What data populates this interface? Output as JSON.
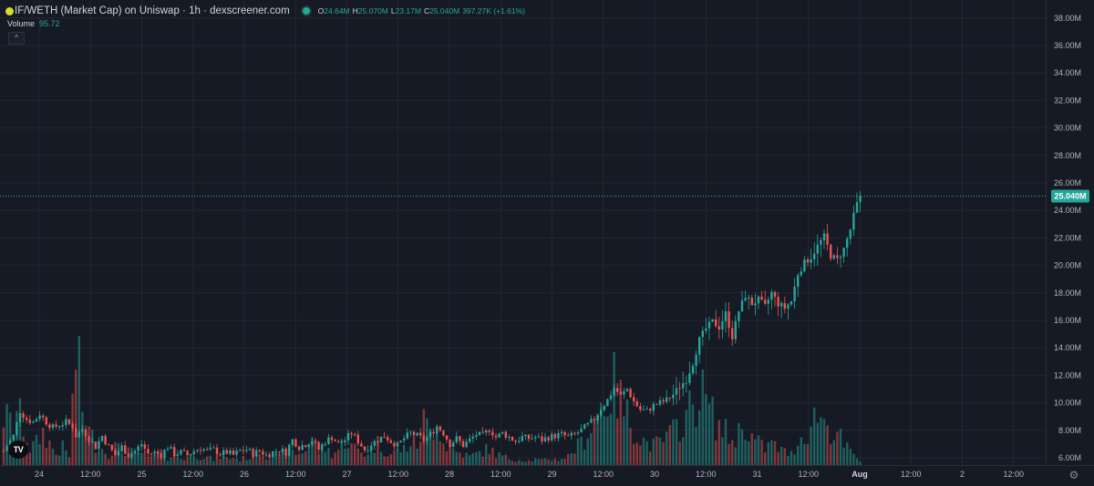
{
  "legend": {
    "title": "IF/WETH (Market Cap) on Uniswap · 1h · dexscreener.com",
    "o_label": "O",
    "o_value": "24.64M",
    "h_label": "H",
    "h_value": "25.070M",
    "l_label": "L",
    "l_value": "23.17M",
    "c_label": "C",
    "c_value": "25.040M",
    "change": "397.27K (+1.61%)"
  },
  "volume": {
    "label": "Volume",
    "value": "95.72"
  },
  "icons": {
    "collapse": "chevron-up-icon",
    "settings": "gear-icon",
    "logo": "tradingview-logo"
  },
  "logo_text": "TV",
  "settings_glyph": "⚙",
  "collapse_glyph": "^",
  "colors": {
    "background": "#161a25",
    "up": "#26a69a",
    "down": "#ef5350",
    "grid": "#232733",
    "text": "#b2b5be"
  },
  "chart_data": {
    "type": "candlestick",
    "price_axis": {
      "ticks": [
        "6.00M",
        "8.00M",
        "10.00M",
        "12.00M",
        "14.00M",
        "16.00M",
        "18.00M",
        "20.00M",
        "22.00M",
        "24.00M",
        "26.00M",
        "28.00M",
        "30.00M",
        "32.00M",
        "34.00M",
        "36.00M",
        "38.00M"
      ],
      "ylim": [
        5.6,
        38.8
      ]
    },
    "time_axis": {
      "ticks": [
        "24",
        "12:00",
        "25",
        "12:00",
        "26",
        "12:00",
        "27",
        "12:00",
        "28",
        "12:00",
        "29",
        "12:00",
        "30",
        "12:00",
        "31",
        "12:00",
        "Aug",
        "12:00",
        "2",
        "12:00"
      ]
    },
    "last_price_label": "25.040M",
    "last_price": 25.04,
    "price_path": [
      [
        0,
        6.5
      ],
      [
        3,
        7.6
      ],
      [
        5,
        9.4
      ],
      [
        7,
        8.8
      ],
      [
        9,
        8.6
      ],
      [
        11,
        9.2
      ],
      [
        13,
        8.6
      ],
      [
        15,
        8.2
      ],
      [
        17,
        8.4
      ],
      [
        19,
        8.6
      ],
      [
        21,
        8.3
      ],
      [
        22,
        7.6
      ],
      [
        24,
        8.1
      ],
      [
        26,
        7.4
      ],
      [
        28,
        6.8
      ],
      [
        30,
        7.6
      ],
      [
        32,
        6.8
      ],
      [
        34,
        6.2
      ],
      [
        36,
        6.8
      ],
      [
        38,
        6.2
      ],
      [
        40,
        6.5
      ],
      [
        42,
        7.0
      ],
      [
        44,
        6.3
      ],
      [
        46,
        6.4
      ],
      [
        48,
        6.2
      ],
      [
        50,
        6.8
      ],
      [
        52,
        6.3
      ],
      [
        54,
        6.4
      ],
      [
        56,
        6.2
      ],
      [
        58,
        6.5
      ],
      [
        60,
        6.7
      ],
      [
        62,
        6.5
      ],
      [
        64,
        6.6
      ],
      [
        66,
        6.3
      ],
      [
        68,
        6.4
      ],
      [
        70,
        6.2
      ],
      [
        72,
        6.5
      ],
      [
        74,
        6.6
      ],
      [
        76,
        6.3
      ],
      [
        78,
        6.5
      ],
      [
        80,
        6.2
      ],
      [
        82,
        6.4
      ],
      [
        84,
        6.6
      ],
      [
        86,
        6.4
      ],
      [
        88,
        7.3
      ],
      [
        90,
        6.8
      ],
      [
        92,
        7.0
      ],
      [
        94,
        7.3
      ],
      [
        96,
        6.6
      ],
      [
        98,
        7.2
      ],
      [
        100,
        7.5
      ],
      [
        102,
        7.0
      ],
      [
        104,
        7.3
      ],
      [
        106,
        7.8
      ],
      [
        108,
        7.2
      ],
      [
        110,
        6.6
      ],
      [
        112,
        7.0
      ],
      [
        114,
        7.3
      ],
      [
        116,
        7.6
      ],
      [
        118,
        7.2
      ],
      [
        120,
        6.9
      ],
      [
        122,
        7.4
      ],
      [
        124,
        7.8
      ],
      [
        126,
        7.6
      ],
      [
        128,
        7.3
      ],
      [
        130,
        7.7
      ],
      [
        132,
        8.3
      ],
      [
        134,
        7.8
      ],
      [
        136,
        7.0
      ],
      [
        138,
        7.4
      ],
      [
        140,
        6.9
      ],
      [
        142,
        7.3
      ],
      [
        144,
        7.7
      ],
      [
        146,
        7.6
      ],
      [
        148,
        8.1
      ],
      [
        150,
        7.5
      ],
      [
        152,
        7.8
      ],
      [
        154,
        7.5
      ],
      [
        156,
        7.2
      ],
      [
        158,
        7.5
      ],
      [
        160,
        7.4
      ],
      [
        162,
        7.5
      ],
      [
        164,
        7.3
      ],
      [
        166,
        7.5
      ],
      [
        168,
        7.6
      ],
      [
        170,
        7.7
      ],
      [
        172,
        7.5
      ],
      [
        174,
        7.7
      ],
      [
        176,
        8.0
      ],
      [
        178,
        8.4
      ],
      [
        180,
        8.8
      ],
      [
        182,
        9.6
      ],
      [
        184,
        10.2
      ],
      [
        186,
        11.1
      ],
      [
        188,
        10.5
      ],
      [
        190,
        11.0
      ],
      [
        192,
        10.1
      ],
      [
        194,
        9.5
      ],
      [
        196,
        9.4
      ],
      [
        198,
        9.8
      ],
      [
        200,
        10.0
      ],
      [
        202,
        10.2
      ],
      [
        204,
        10.6
      ],
      [
        206,
        11.2
      ],
      [
        208,
        11.7
      ],
      [
        210,
        12.9
      ],
      [
        212,
        14.6
      ],
      [
        214,
        15.4
      ],
      [
        216,
        15.9
      ],
      [
        218,
        15.5
      ],
      [
        220,
        16.5
      ],
      [
        222,
        14.8
      ],
      [
        224,
        16.7
      ],
      [
        226,
        17.8
      ],
      [
        228,
        17.2
      ],
      [
        230,
        17.5
      ],
      [
        232,
        17.0
      ],
      [
        234,
        18.0
      ],
      [
        236,
        17.2
      ],
      [
        238,
        16.9
      ],
      [
        240,
        17.4
      ],
      [
        242,
        19.4
      ],
      [
        244,
        20.2
      ],
      [
        246,
        20.6
      ],
      [
        248,
        21.4
      ],
      [
        250,
        22.1
      ],
      [
        252,
        20.7
      ],
      [
        254,
        20.4
      ],
      [
        256,
        21.2
      ],
      [
        258,
        22.6
      ],
      [
        260,
        24.6
      ],
      [
        261,
        25.04
      ]
    ],
    "volume_profile": [
      [
        0,
        4.5
      ],
      [
        3,
        3.5
      ],
      [
        4,
        5.0
      ],
      [
        6,
        3.6
      ],
      [
        8,
        1.5
      ],
      [
        10,
        2.0
      ],
      [
        12,
        3.0
      ],
      [
        14,
        2.0
      ],
      [
        16,
        1.0
      ],
      [
        18,
        1.6
      ],
      [
        20,
        0.8
      ],
      [
        22,
        10.0
      ],
      [
        23,
        8.2
      ],
      [
        24,
        5.0
      ],
      [
        26,
        3.0
      ],
      [
        28,
        2.0
      ],
      [
        30,
        1.5
      ],
      [
        32,
        1.0
      ],
      [
        34,
        1.7
      ],
      [
        36,
        1.2
      ],
      [
        38,
        1.5
      ],
      [
        40,
        0.8
      ],
      [
        42,
        1.2
      ],
      [
        44,
        0.6
      ],
      [
        46,
        0.8
      ],
      [
        48,
        1.0
      ],
      [
        50,
        0.7
      ],
      [
        52,
        0.8
      ],
      [
        54,
        0.6
      ],
      [
        56,
        0.7
      ],
      [
        58,
        1.0
      ],
      [
        60,
        0.8
      ],
      [
        62,
        0.7
      ],
      [
        64,
        0.5
      ],
      [
        66,
        0.8
      ],
      [
        68,
        0.6
      ],
      [
        70,
        0.7
      ],
      [
        72,
        0.5
      ],
      [
        74,
        0.7
      ],
      [
        76,
        0.6
      ],
      [
        78,
        1.2
      ],
      [
        80,
        0.8
      ],
      [
        82,
        1.0
      ],
      [
        84,
        0.7
      ],
      [
        86,
        1.5
      ],
      [
        88,
        1.2
      ],
      [
        90,
        1.0
      ],
      [
        92,
        1.5
      ],
      [
        94,
        2.5
      ],
      [
        96,
        1.3
      ],
      [
        98,
        1.6
      ],
      [
        100,
        1.0
      ],
      [
        102,
        1.4
      ],
      [
        104,
        2.4
      ],
      [
        106,
        1.7
      ],
      [
        108,
        1.4
      ],
      [
        110,
        1.0
      ],
      [
        112,
        1.5
      ],
      [
        114,
        2.0
      ],
      [
        116,
        1.4
      ],
      [
        118,
        1.0
      ],
      [
        120,
        1.3
      ],
      [
        122,
        1.5
      ],
      [
        124,
        2.0
      ],
      [
        126,
        1.8
      ],
      [
        128,
        4.0
      ],
      [
        130,
        3.0
      ],
      [
        132,
        4.2
      ],
      [
        134,
        2.0
      ],
      [
        136,
        1.6
      ],
      [
        138,
        1.2
      ],
      [
        140,
        1.0
      ],
      [
        142,
        0.8
      ],
      [
        144,
        1.0
      ],
      [
        146,
        1.3
      ],
      [
        148,
        1.5
      ],
      [
        150,
        1.0
      ],
      [
        152,
        0.8
      ],
      [
        154,
        0.6
      ],
      [
        156,
        0.5
      ],
      [
        158,
        0.5
      ],
      [
        160,
        0.4
      ],
      [
        162,
        0.5
      ],
      [
        164,
        0.4
      ],
      [
        166,
        0.6
      ],
      [
        168,
        0.5
      ],
      [
        170,
        0.6
      ],
      [
        172,
        0.8
      ],
      [
        174,
        1.5
      ],
      [
        176,
        2.0
      ],
      [
        178,
        3.0
      ],
      [
        180,
        4.0
      ],
      [
        182,
        5.5
      ],
      [
        184,
        6.0
      ],
      [
        186,
        7.2
      ],
      [
        188,
        5.8
      ],
      [
        190,
        4.5
      ],
      [
        192,
        3.5
      ],
      [
        194,
        2.5
      ],
      [
        196,
        2.0
      ],
      [
        198,
        1.8
      ],
      [
        200,
        2.0
      ],
      [
        202,
        2.5
      ],
      [
        204,
        3.0
      ],
      [
        206,
        3.8
      ],
      [
        208,
        4.5
      ],
      [
        210,
        5.5
      ],
      [
        212,
        6.8
      ],
      [
        214,
        6.0
      ],
      [
        216,
        4.5
      ],
      [
        218,
        3.5
      ],
      [
        220,
        3.0
      ],
      [
        222,
        2.2
      ],
      [
        224,
        3.0
      ],
      [
        226,
        3.8
      ],
      [
        228,
        2.5
      ],
      [
        230,
        2.0
      ],
      [
        232,
        1.5
      ],
      [
        234,
        2.0
      ],
      [
        236,
        1.5
      ],
      [
        238,
        1.2
      ],
      [
        240,
        1.0
      ],
      [
        242,
        2.2
      ],
      [
        244,
        2.8
      ],
      [
        246,
        3.5
      ],
      [
        248,
        5.0
      ],
      [
        250,
        4.0
      ],
      [
        252,
        3.2
      ],
      [
        254,
        3.0
      ],
      [
        256,
        1.8
      ],
      [
        258,
        1.2
      ],
      [
        260,
        0.5
      ],
      [
        261,
        0.3
      ]
    ]
  }
}
